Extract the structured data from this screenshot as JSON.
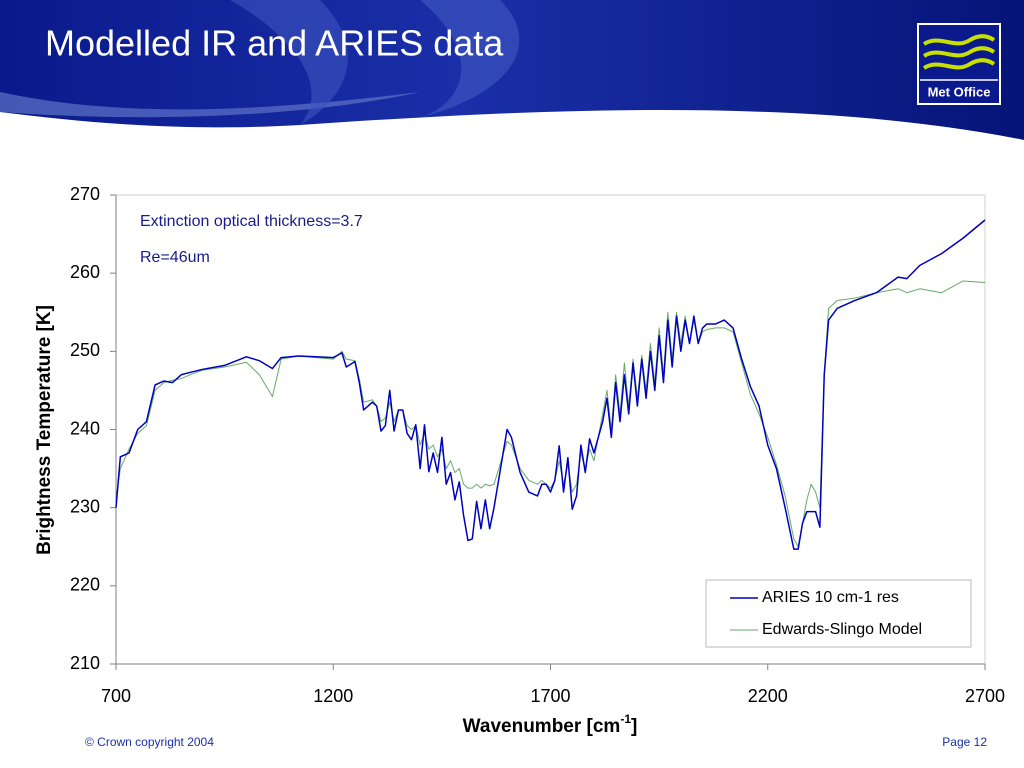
{
  "header": {
    "title": "Modelled IR and ARIES data",
    "logo": "Met Office"
  },
  "chart_data": {
    "type": "line",
    "annotations": [
      "Extinction optical thickness=3.7",
      "Re=46um"
    ],
    "x_label": [
      "Wavenumber [cm",
      "-1",
      "]"
    ],
    "y_label": "Brightness Temperature [K]",
    "xlim": [
      700,
      2700
    ],
    "xticks": [
      700,
      1200,
      1700,
      2200,
      2700
    ],
    "ylim": [
      210,
      270
    ],
    "yticks": [
      210,
      220,
      230,
      240,
      250,
      260,
      270
    ],
    "grid": false,
    "legend": "lower right",
    "x": [
      700,
      710,
      730,
      750,
      770,
      790,
      810,
      830,
      850,
      870,
      900,
      950,
      1000,
      1030,
      1060,
      1080,
      1120,
      1160,
      1200,
      1220,
      1230,
      1250,
      1260,
      1270,
      1290,
      1300,
      1310,
      1320,
      1330,
      1340,
      1350,
      1360,
      1370,
      1380,
      1390,
      1400,
      1410,
      1420,
      1430,
      1440,
      1450,
      1460,
      1470,
      1480,
      1490,
      1500,
      1510,
      1520,
      1530,
      1540,
      1550,
      1560,
      1570,
      1600,
      1610,
      1630,
      1650,
      1670,
      1680,
      1690,
      1700,
      1710,
      1720,
      1730,
      1740,
      1750,
      1760,
      1770,
      1780,
      1790,
      1800,
      1820,
      1830,
      1840,
      1850,
      1860,
      1870,
      1880,
      1890,
      1900,
      1910,
      1920,
      1930,
      1940,
      1950,
      1960,
      1970,
      1980,
      1990,
      2000,
      2010,
      2020,
      2030,
      2040,
      2050,
      2060,
      2080,
      2100,
      2120,
      2140,
      2160,
      2180,
      2200,
      2220,
      2240,
      2260,
      2270,
      2280,
      2290,
      2300,
      2310,
      2320,
      2330,
      2340,
      2360,
      2400,
      2450,
      2500,
      2520,
      2550,
      2600,
      2650,
      2700
    ],
    "series": [
      {
        "name": "ARIES 10 cm-1 res",
        "color": "#0000c0",
        "width": 1.5,
        "values": [
          230,
          236.5,
          237,
          240,
          241,
          245.7,
          246.2,
          246,
          247,
          247.3,
          247.7,
          248.2,
          249.3,
          248.8,
          247.8,
          249.2,
          249.4,
          249.3,
          249.2,
          249.8,
          248,
          248.7,
          246,
          242.5,
          243.5,
          243,
          239.8,
          240.5,
          245,
          239.8,
          242.5,
          242.5,
          239.5,
          238.7,
          240.6,
          235,
          240.6,
          234.6,
          237,
          234.5,
          239,
          233,
          234.5,
          231,
          233.3,
          229,
          225.8,
          226,
          230.8,
          227.3,
          231,
          227.3,
          230,
          240,
          239,
          234.5,
          232,
          231.5,
          233,
          233,
          232,
          233.5,
          237.9,
          232,
          236.4,
          229.8,
          231.5,
          238,
          234.5,
          238.8,
          237,
          241,
          244,
          239,
          246,
          241,
          247,
          242,
          248.5,
          243,
          249,
          244,
          250,
          245,
          252,
          246,
          254,
          248,
          254.5,
          250,
          254,
          251,
          254.5,
          251,
          253,
          253.5,
          253.5,
          254,
          253,
          249,
          245.5,
          243,
          238,
          235,
          230,
          224.7,
          224.7,
          228,
          229.5,
          229.5,
          229.5,
          227.5,
          247,
          254,
          255.5,
          256.5,
          257.5,
          259.5,
          259.3,
          261,
          262.5,
          264.5,
          266.8
        ]
      },
      {
        "name": "Edwards-Slingo Model",
        "color": "#66aa66",
        "width": 1,
        "values": [
          231,
          235,
          237.5,
          239.5,
          240.5,
          245,
          246,
          246.3,
          246.5,
          247,
          247.6,
          248,
          248.6,
          247,
          244.2,
          249,
          249.4,
          249.2,
          249,
          250,
          249,
          248.8,
          246.5,
          243.5,
          243.8,
          243,
          241,
          241.5,
          243.5,
          241,
          242.5,
          242.5,
          240.5,
          240,
          240.5,
          238,
          239.5,
          237.5,
          238,
          236.5,
          237.5,
          235,
          236,
          234.5,
          235,
          233,
          232.5,
          232.5,
          233,
          232.5,
          233,
          232.8,
          233,
          238.5,
          238,
          235,
          233.5,
          233,
          233.5,
          233,
          232.5,
          233.5,
          236,
          233,
          235.5,
          232,
          233,
          237,
          235,
          237.5,
          236,
          242,
          245,
          240,
          247,
          242,
          248.5,
          243,
          249,
          244,
          249.5,
          245,
          251,
          246,
          253,
          247,
          255,
          249,
          255,
          251,
          254.5,
          251,
          254,
          251,
          252.5,
          252.8,
          253,
          253,
          252.5,
          248.5,
          244.5,
          242,
          239,
          235.5,
          231.5,
          226,
          225,
          228,
          231,
          233,
          232,
          230,
          247,
          255.5,
          256.5,
          256.8,
          257.5,
          258,
          257.5,
          258,
          257.5,
          259,
          258.8
        ]
      }
    ]
  },
  "footer": {
    "copyright": "© Crown copyright 2004",
    "page": "Page 12"
  }
}
